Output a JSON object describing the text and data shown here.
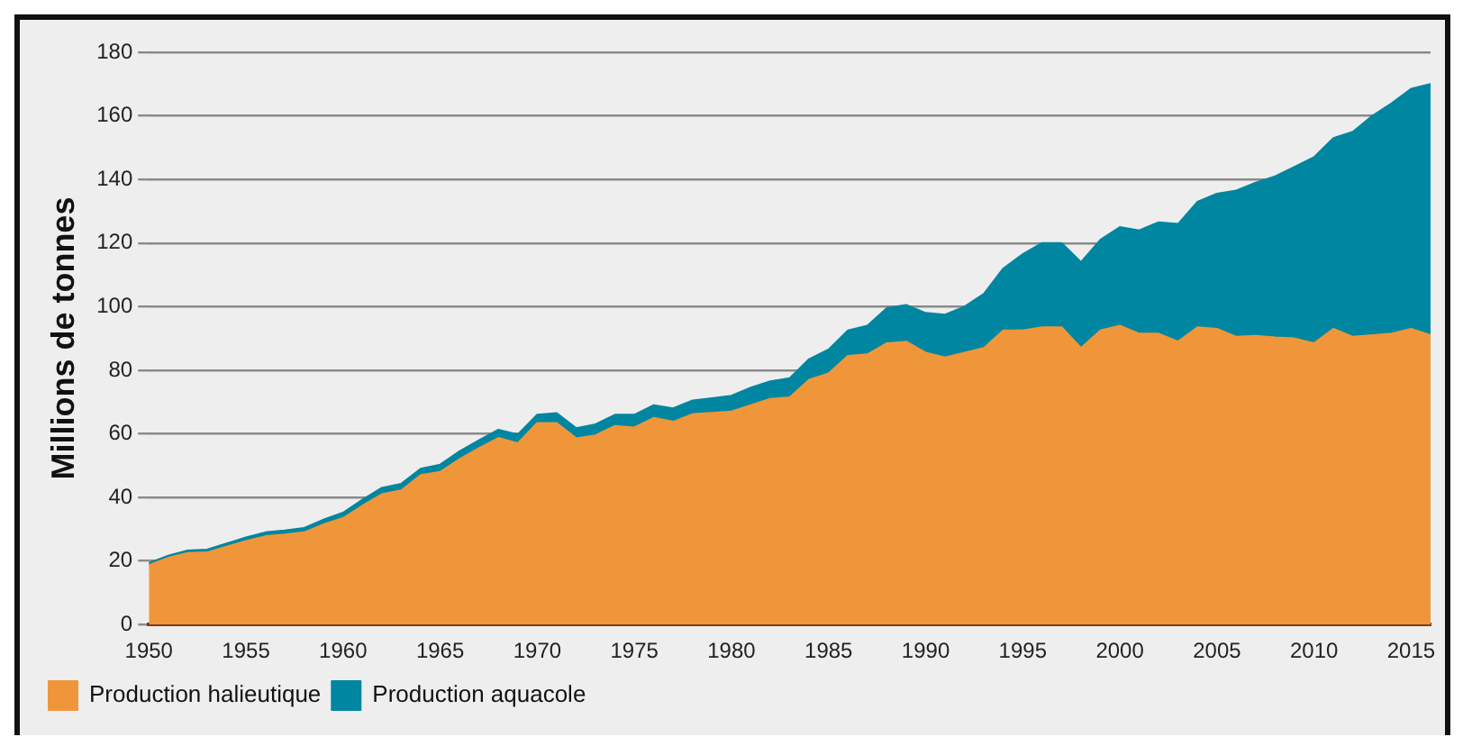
{
  "chart_data": {
    "type": "area",
    "stacked": true,
    "ylabel": "Millions de tonnes",
    "x": [
      1950,
      1951,
      1952,
      1953,
      1954,
      1955,
      1956,
      1957,
      1958,
      1959,
      1960,
      1961,
      1962,
      1963,
      1964,
      1965,
      1966,
      1967,
      1968,
      1969,
      1970,
      1971,
      1972,
      1973,
      1974,
      1975,
      1976,
      1977,
      1978,
      1979,
      1980,
      1981,
      1982,
      1983,
      1984,
      1985,
      1986,
      1987,
      1988,
      1989,
      1990,
      1991,
      1992,
      1993,
      1994,
      1995,
      1996,
      1997,
      1998,
      1999,
      2000,
      2001,
      2002,
      2003,
      2004,
      2005,
      2006,
      2007,
      2008,
      2009,
      2010,
      2011,
      2012,
      2013,
      2014,
      2015,
      2016
    ],
    "series": [
      {
        "name": "Production halieutique",
        "color": "#f0963a",
        "values": [
          18.7,
          21,
          22.5,
          22.7,
          24.5,
          26.3,
          27.8,
          28.3,
          29,
          31.5,
          33.5,
          37.4,
          41,
          42.2,
          47,
          48,
          52,
          55.5,
          58.7,
          57,
          63.4,
          63.4,
          58.6,
          59.5,
          62.5,
          62,
          65,
          63.8,
          66.2,
          66.6,
          67,
          69,
          71,
          71.5,
          77,
          79,
          84.5,
          85,
          88.5,
          89,
          85.5,
          84,
          85.5,
          87,
          92.5,
          92.5,
          93.5,
          93.5,
          87,
          92.5,
          94,
          91.5,
          91.5,
          89,
          93.5,
          93,
          90.5,
          90.8,
          90.3,
          90,
          88.5,
          93,
          90.5,
          91,
          91.5,
          93,
          91
        ]
      },
      {
        "name": "Production aquacole",
        "color": "#0086a0",
        "values": [
          0.6,
          0.7,
          0.8,
          0.9,
          1,
          1.1,
          1.2,
          1.3,
          1.4,
          1.5,
          1.7,
          1.9,
          2,
          2.1,
          2,
          2.3,
          2.5,
          2.5,
          2.6,
          2.8,
          2.6,
          3.1,
          3.2,
          3.5,
          3.5,
          4,
          4,
          4.2,
          4.3,
          4.6,
          5,
          5.5,
          5.5,
          6,
          6.5,
          7.5,
          8,
          9,
          11,
          11.5,
          12.5,
          13.5,
          14.5,
          17,
          19.5,
          24,
          26.5,
          26.5,
          27,
          28.5,
          31,
          32.5,
          35,
          37,
          39.5,
          42.5,
          46,
          48.2,
          50.7,
          54,
          58.5,
          60,
          64.5,
          69,
          72.5,
          75.5,
          79
        ]
      }
    ],
    "xlim": [
      1950,
      2016
    ],
    "xticks": [
      1950,
      1955,
      1960,
      1965,
      1970,
      1975,
      1980,
      1985,
      1990,
      1995,
      2000,
      2005,
      2010,
      2015
    ],
    "ylim": [
      0,
      180
    ],
    "yticks": [
      0,
      20,
      40,
      60,
      80,
      100,
      120,
      140,
      160,
      180
    ],
    "grid": "y",
    "legend": "bottom left"
  }
}
